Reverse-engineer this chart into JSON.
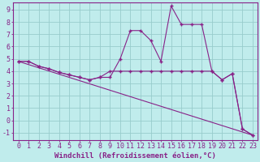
{
  "xlabel": "Windchill (Refroidissement éolien,°C)",
  "ylabel": "",
  "bg_color": "#c0ecec",
  "grid_color": "#98cccc",
  "line_color": "#882288",
  "xlim": [
    -0.5,
    23.5
  ],
  "ylim": [
    -1.6,
    9.6
  ],
  "xticks": [
    0,
    1,
    2,
    3,
    4,
    5,
    6,
    7,
    8,
    9,
    10,
    11,
    12,
    13,
    14,
    15,
    16,
    17,
    18,
    19,
    20,
    21,
    22,
    23
  ],
  "yticks": [
    -1,
    0,
    1,
    2,
    3,
    4,
    5,
    6,
    7,
    8,
    9
  ],
  "line1_x": [
    0,
    1,
    2,
    3,
    4,
    5,
    6,
    7,
    8,
    9,
    10,
    11,
    12,
    13,
    14,
    15,
    16,
    17,
    18,
    19,
    20,
    21,
    22,
    23
  ],
  "line1_y": [
    4.8,
    4.8,
    4.4,
    4.2,
    3.9,
    3.7,
    3.5,
    3.3,
    3.5,
    3.5,
    5.0,
    7.3,
    7.3,
    6.5,
    4.8,
    9.3,
    7.8,
    7.8,
    7.8,
    4.0,
    3.3,
    3.8,
    -0.7,
    -1.2
  ],
  "line2_x": [
    0,
    1,
    2,
    3,
    4,
    5,
    6,
    7,
    8,
    9,
    10,
    11,
    12,
    13,
    14,
    15,
    16,
    17,
    18,
    19,
    20,
    21,
    22,
    23
  ],
  "line2_y": [
    4.8,
    4.8,
    4.4,
    4.2,
    3.9,
    3.7,
    3.5,
    3.3,
    3.5,
    4.0,
    4.0,
    4.0,
    4.0,
    4.0,
    4.0,
    4.0,
    4.0,
    4.0,
    4.0,
    4.0,
    3.3,
    3.8,
    -0.7,
    -1.2
  ],
  "line3_x": [
    0,
    23
  ],
  "line3_y": [
    4.8,
    -1.2
  ],
  "fontsize_xlabel": 6.5,
  "fontsize_ticks": 6,
  "marker": "+",
  "markersize": 3.5,
  "linewidth": 0.8
}
